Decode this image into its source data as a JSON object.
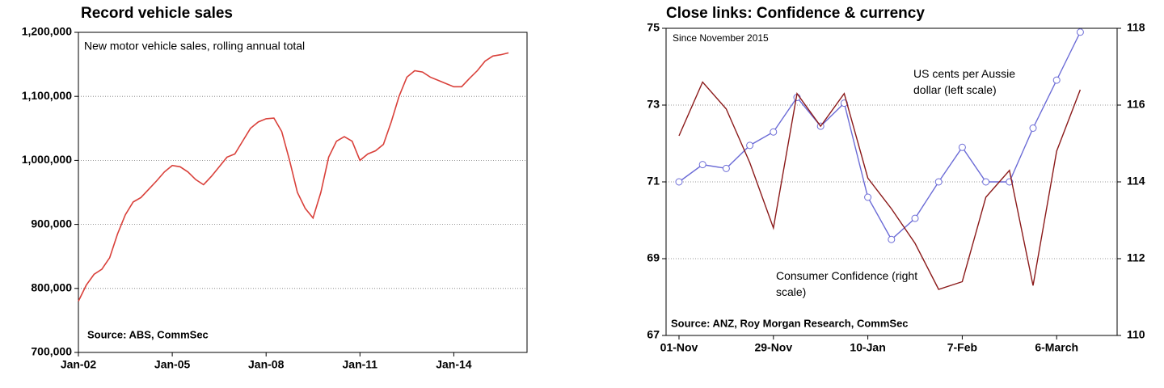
{
  "chart_data": [
    {
      "type": "line",
      "title": "Record vehicle sales",
      "annotation": "New motor vehicle sales, rolling annual total",
      "source": "Source:  ABS, CommSec",
      "categories": [
        "Jan-02",
        null,
        null,
        null,
        null,
        null,
        null,
        null,
        null,
        null,
        null,
        null,
        "Jan-05",
        null,
        null,
        null,
        null,
        null,
        null,
        null,
        null,
        null,
        null,
        null,
        "Jan-08",
        null,
        null,
        null,
        null,
        null,
        null,
        null,
        null,
        null,
        null,
        null,
        "Jan-11",
        null,
        null,
        null,
        null,
        null,
        null,
        null,
        null,
        null,
        null,
        null,
        "Jan-14",
        null,
        null,
        null,
        null,
        null,
        null,
        null
      ],
      "series": [
        {
          "name": "New motor vehicle sales",
          "color": "#d9403a",
          "values": [
            780000,
            805000,
            822000,
            830000,
            848000,
            885000,
            915000,
            935000,
            942000,
            955000,
            968000,
            982000,
            992000,
            990000,
            982000,
            970000,
            962000,
            975000,
            990000,
            1005000,
            1010000,
            1030000,
            1050000,
            1060000,
            1065000,
            1066000,
            1045000,
            1000000,
            950000,
            925000,
            910000,
            950000,
            1005000,
            1030000,
            1037000,
            1030000,
            1000000,
            1010000,
            1015000,
            1025000,
            1060000,
            1100000,
            1130000,
            1140000,
            1138000,
            1130000,
            1125000,
            1120000,
            1115000,
            1115000,
            1128000,
            1140000,
            1155000,
            1163000,
            1165000,
            1168000
          ]
        }
      ],
      "ylim": [
        700000,
        1200000
      ],
      "yticks": [
        {
          "value": 700000,
          "label": "700,000"
        },
        {
          "value": 800000,
          "label": "800,000"
        },
        {
          "value": 900000,
          "label": "900,000"
        },
        {
          "value": 1000000,
          "label": "1,000,000"
        },
        {
          "value": 1100000,
          "label": "1,100,000"
        },
        {
          "value": 1200000,
          "label": "1,200,000"
        }
      ],
      "grid": true
    },
    {
      "type": "line",
      "title": "Close links: Confidence & currency",
      "annotation": "Since November 2015",
      "source": "Source: ANZ, Roy Morgan Research, CommSec",
      "categories": [
        "01-Nov",
        null,
        null,
        null,
        "29-Nov",
        null,
        null,
        null,
        "10-Jan",
        null,
        null,
        null,
        "7-Feb",
        null,
        null,
        null,
        "6-March",
        null
      ],
      "series": [
        {
          "name": "US cents per Aussie dollar (left scale)",
          "color": "#6b6bd6",
          "marker": "circle",
          "values": [
            71.0,
            71.45,
            71.35,
            71.95,
            72.3,
            73.2,
            72.45,
            73.05,
            70.6,
            69.5,
            70.05,
            71.0,
            71.9,
            71.0,
            71.0,
            72.4,
            73.65,
            74.9
          ]
        },
        {
          "name": "Consumer Confidence (right scale)",
          "color": "#8b1a1a",
          "axis": "y2",
          "values": [
            115.2,
            116.6,
            115.9,
            114.5,
            112.8,
            116.3,
            115.45,
            116.3,
            114.1,
            113.3,
            112.4,
            111.2,
            111.4,
            113.6,
            114.3,
            111.3,
            114.8,
            116.4
          ]
        }
      ],
      "ylim": [
        67,
        75
      ],
      "yticks": [
        67,
        69,
        71,
        73,
        75
      ],
      "y2lim": [
        110,
        118
      ],
      "y2ticks": [
        110,
        112,
        114,
        116,
        118
      ],
      "grid": true
    }
  ]
}
